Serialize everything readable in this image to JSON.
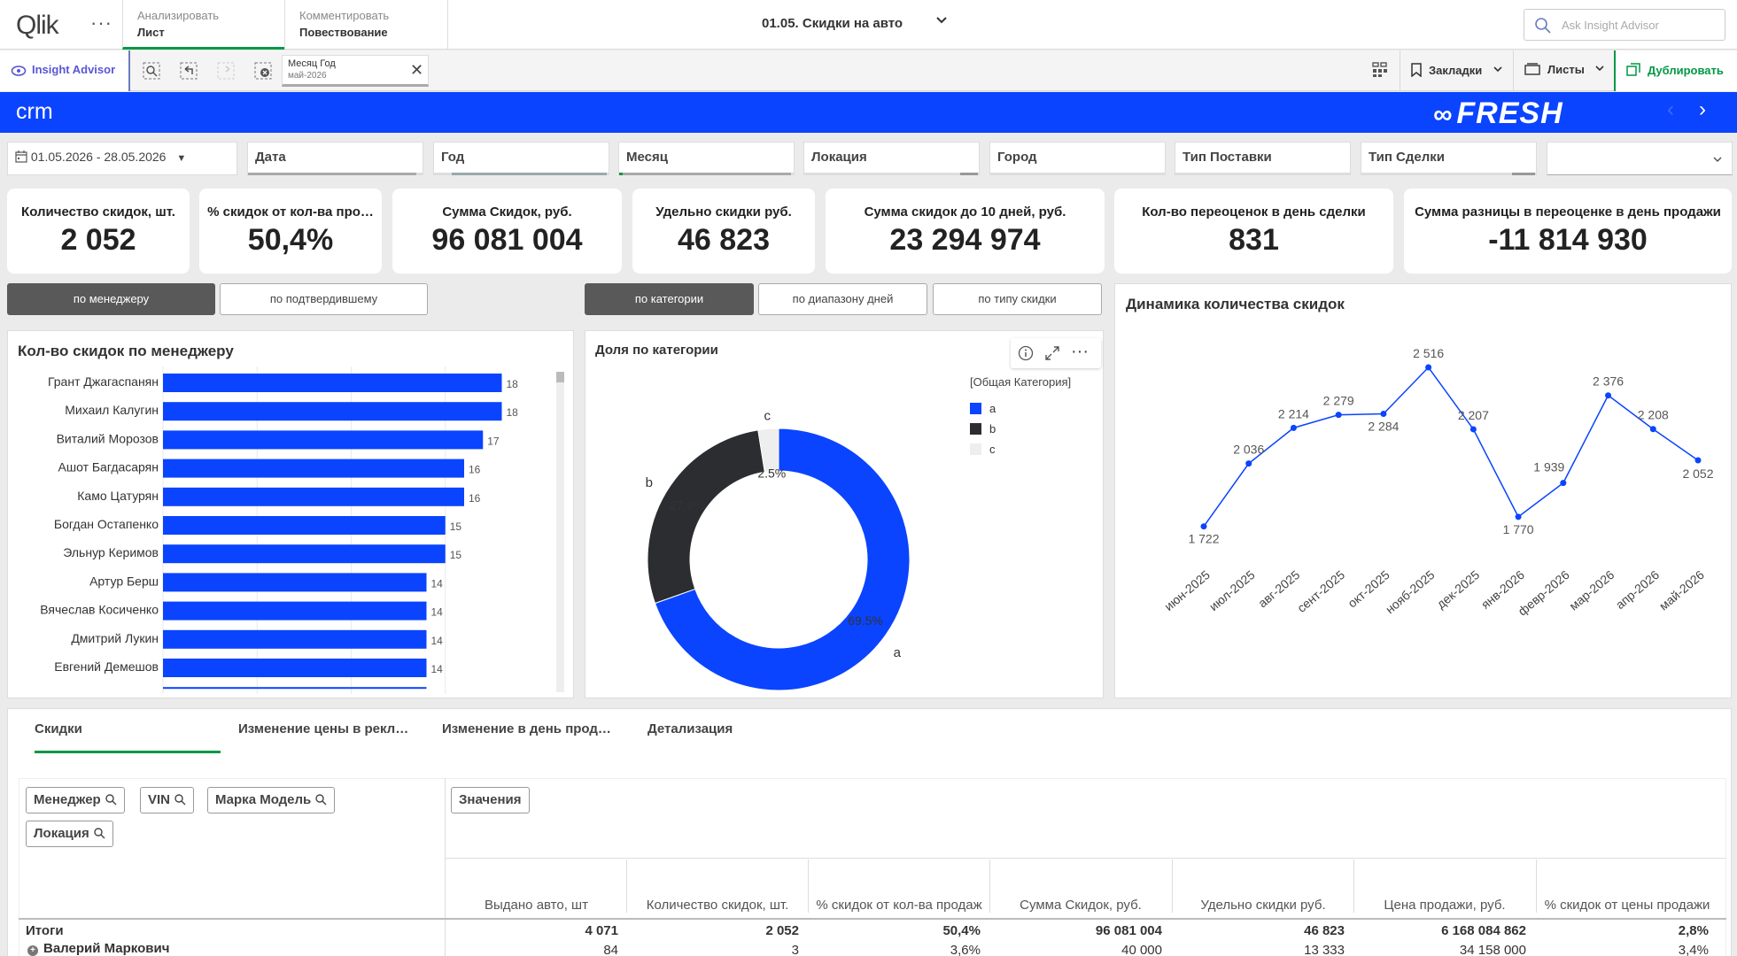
{
  "topbar": {
    "logo": "Qlik",
    "tabs": [
      {
        "l1": "Анализировать",
        "l2": "Лист"
      },
      {
        "l1": "Комментировать",
        "l2": "Повествование"
      }
    ],
    "sheet_title": "01.05. Скидки на авто",
    "search_placeholder": "Ask Insight Advisor"
  },
  "toolbar": {
    "insight_label": "Insight Advisor",
    "selection": {
      "field": "Месяц Год",
      "value": "май-2026"
    },
    "bookmarks": "Закладки",
    "sheets": "Листы",
    "duplicate": "Дублировать"
  },
  "header": {
    "title": "crm",
    "brand": "FRESH"
  },
  "filters": {
    "date_range": "01.05.2026 - 28.05.2026",
    "items": [
      "Дата",
      "Год",
      "Месяц",
      "Локация",
      "Город",
      "Тип Поставки",
      "Тип Сделки",
      ""
    ]
  },
  "kpis": [
    {
      "title": "Количество скидок, шт.",
      "value": "2 052"
    },
    {
      "title": "% скидок от кол-ва про…",
      "value": "50,4%"
    },
    {
      "title": "Сумма Скидок, руб.",
      "value": "96 081 004"
    },
    {
      "title": "Удельно скидки руб.",
      "value": "46 823"
    },
    {
      "title": "Сумма скидок до 10 дней, руб.",
      "value": "23 294 974"
    },
    {
      "title": "Кол-во переоценок в день сделки",
      "value": "831"
    },
    {
      "title": "Сумма разницы в переоценке в день продажи",
      "value": "-11 814 930"
    }
  ],
  "buttons": {
    "manager": "по менеджеру",
    "confirmer": "по подтвердившему",
    "category": "по категории",
    "day_range": "по диапазону дней",
    "discount_type": "по типу скидки"
  },
  "colors": {
    "accent": "#0a44ff",
    "dark": "#2b2d31",
    "light": "#eeeeee",
    "green": "#009845"
  },
  "chart_data": [
    {
      "type": "bar",
      "title": "Кол-во скидок по менеджеру",
      "categories": [
        "Грант Джагаспанян",
        "Михаил Калугин",
        "Виталий Морозов",
        "Ашот Багдасарян",
        "Камо Цатурян",
        "Богдан Остапенко",
        "Эльнур Керимов",
        "Артур Берш",
        "Вячеслав Косиченко",
        "Дмитрий Лукин",
        "Евгений Демешов"
      ],
      "values": [
        18,
        18,
        17,
        16,
        16,
        15,
        15,
        14,
        14,
        14,
        14
      ],
      "xlim": [
        0,
        20
      ],
      "orientation": "horizontal"
    },
    {
      "type": "pie",
      "title": "Доля по категории",
      "legend_title": "[Общая Категория]",
      "categories": [
        "a",
        "b",
        "c"
      ],
      "values": [
        69.5,
        27.9,
        2.5
      ],
      "labels": [
        "69.5%",
        "27.9%",
        "2.5%"
      ],
      "colors": [
        "#0a44ff",
        "#2b2d31",
        "#eeeeee"
      ]
    },
    {
      "type": "line",
      "title": "Динамика количества скидок",
      "categories": [
        "июн-2025",
        "июл-2025",
        "авг-2025",
        "сент-2025",
        "окт-2025",
        "нояб-2025",
        "дек-2025",
        "янв-2026",
        "февр-2026",
        "мар-2026",
        "апр-2026",
        "май-2026"
      ],
      "values": [
        1722,
        2036,
        2214,
        2279,
        2284,
        2516,
        2207,
        1770,
        1939,
        2376,
        2208,
        2052
      ],
      "labels": [
        "1 722",
        "2 036",
        "2 214",
        "2 279",
        "2 284",
        "2 516",
        "2 207",
        "1 770",
        "1 939",
        "2 376",
        "2 208",
        "2 052"
      ],
      "ylim": [
        1650,
        2600
      ]
    }
  ],
  "bottom": {
    "tabs": [
      "Скидки",
      "Изменение цены в рекл…",
      "Изменение в день прод…",
      "Детализация"
    ],
    "dimension_chips": [
      "Менеджер",
      "VIN",
      "Марка Модель",
      "Локация"
    ],
    "values_chip": "Значения",
    "columns": [
      "Выдано авто, шт",
      "Количество скидок, шт.",
      "% скидок от кол-ва продаж",
      "Сумма Скидок, руб.",
      "Удельно скидки руб.",
      "Цена продажи, руб.",
      "% скидок от цены продажи"
    ],
    "total_label": "Итоги",
    "totals": [
      "4 071",
      "2 052",
      "50,4%",
      "96 081 004",
      "46 823",
      "6 168 084 862",
      "2,8%"
    ],
    "row_label": "Валерий Маркович",
    "row_values": [
      "84",
      "3",
      "3,6%",
      "40 000",
      "13 333",
      "34 158 000",
      "3,4%"
    ]
  }
}
